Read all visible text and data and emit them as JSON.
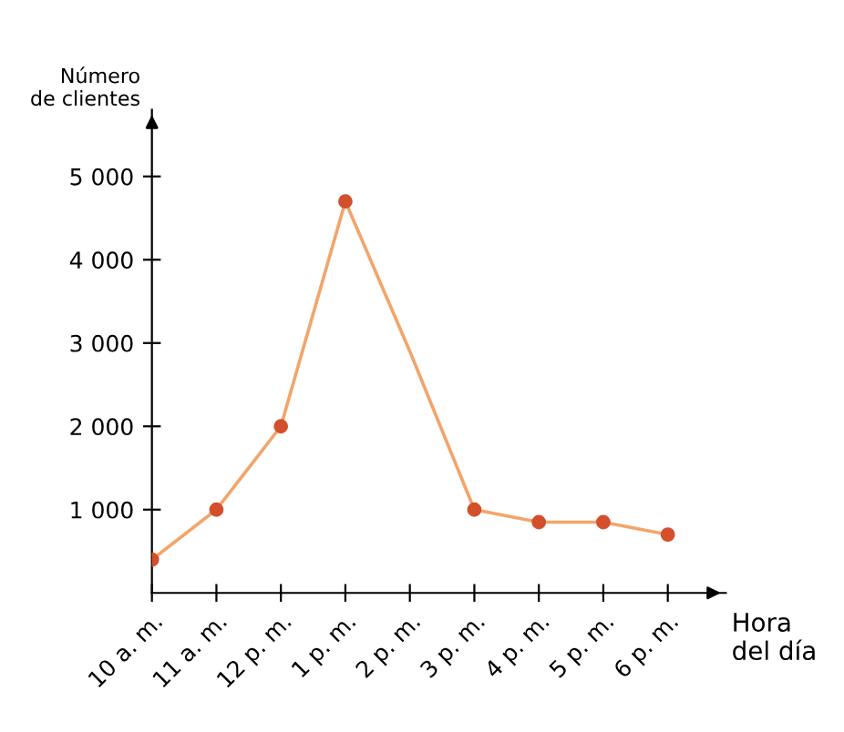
{
  "chart_data": {
    "type": "line",
    "xlabel": "Hora\ndel día",
    "ylabel": "Número\nde clientes",
    "categories": [
      "10 a. m.",
      "11 a. m.",
      "12 p. m.",
      "1 p. m.",
      "2 p. m.",
      "3 p. m.",
      "4 p. m.",
      "5 p. m.",
      "6 p. m."
    ],
    "series": [
      {
        "color": "#f2a56a",
        "marker": "none",
        "values": [
          400,
          1000,
          2000,
          4700,
          2900,
          1000,
          850,
          850,
          700
        ]
      },
      {
        "type": "scatter",
        "color": "#d4502c",
        "marker": "circle",
        "values": [
          400,
          1000,
          2000,
          4700,
          null,
          1000,
          850,
          850,
          700
        ]
      }
    ],
    "ylim": [
      0,
      5800
    ],
    "yticks": [
      {
        "value": 1000,
        "label": "1 000"
      },
      {
        "value": 2000,
        "label": "2 000"
      },
      {
        "value": 3000,
        "label": "3 000"
      },
      {
        "value": 4000,
        "label": "4 000"
      },
      {
        "value": 5000,
        "label": "5 000"
      }
    ],
    "grid": false,
    "legend": false
  }
}
